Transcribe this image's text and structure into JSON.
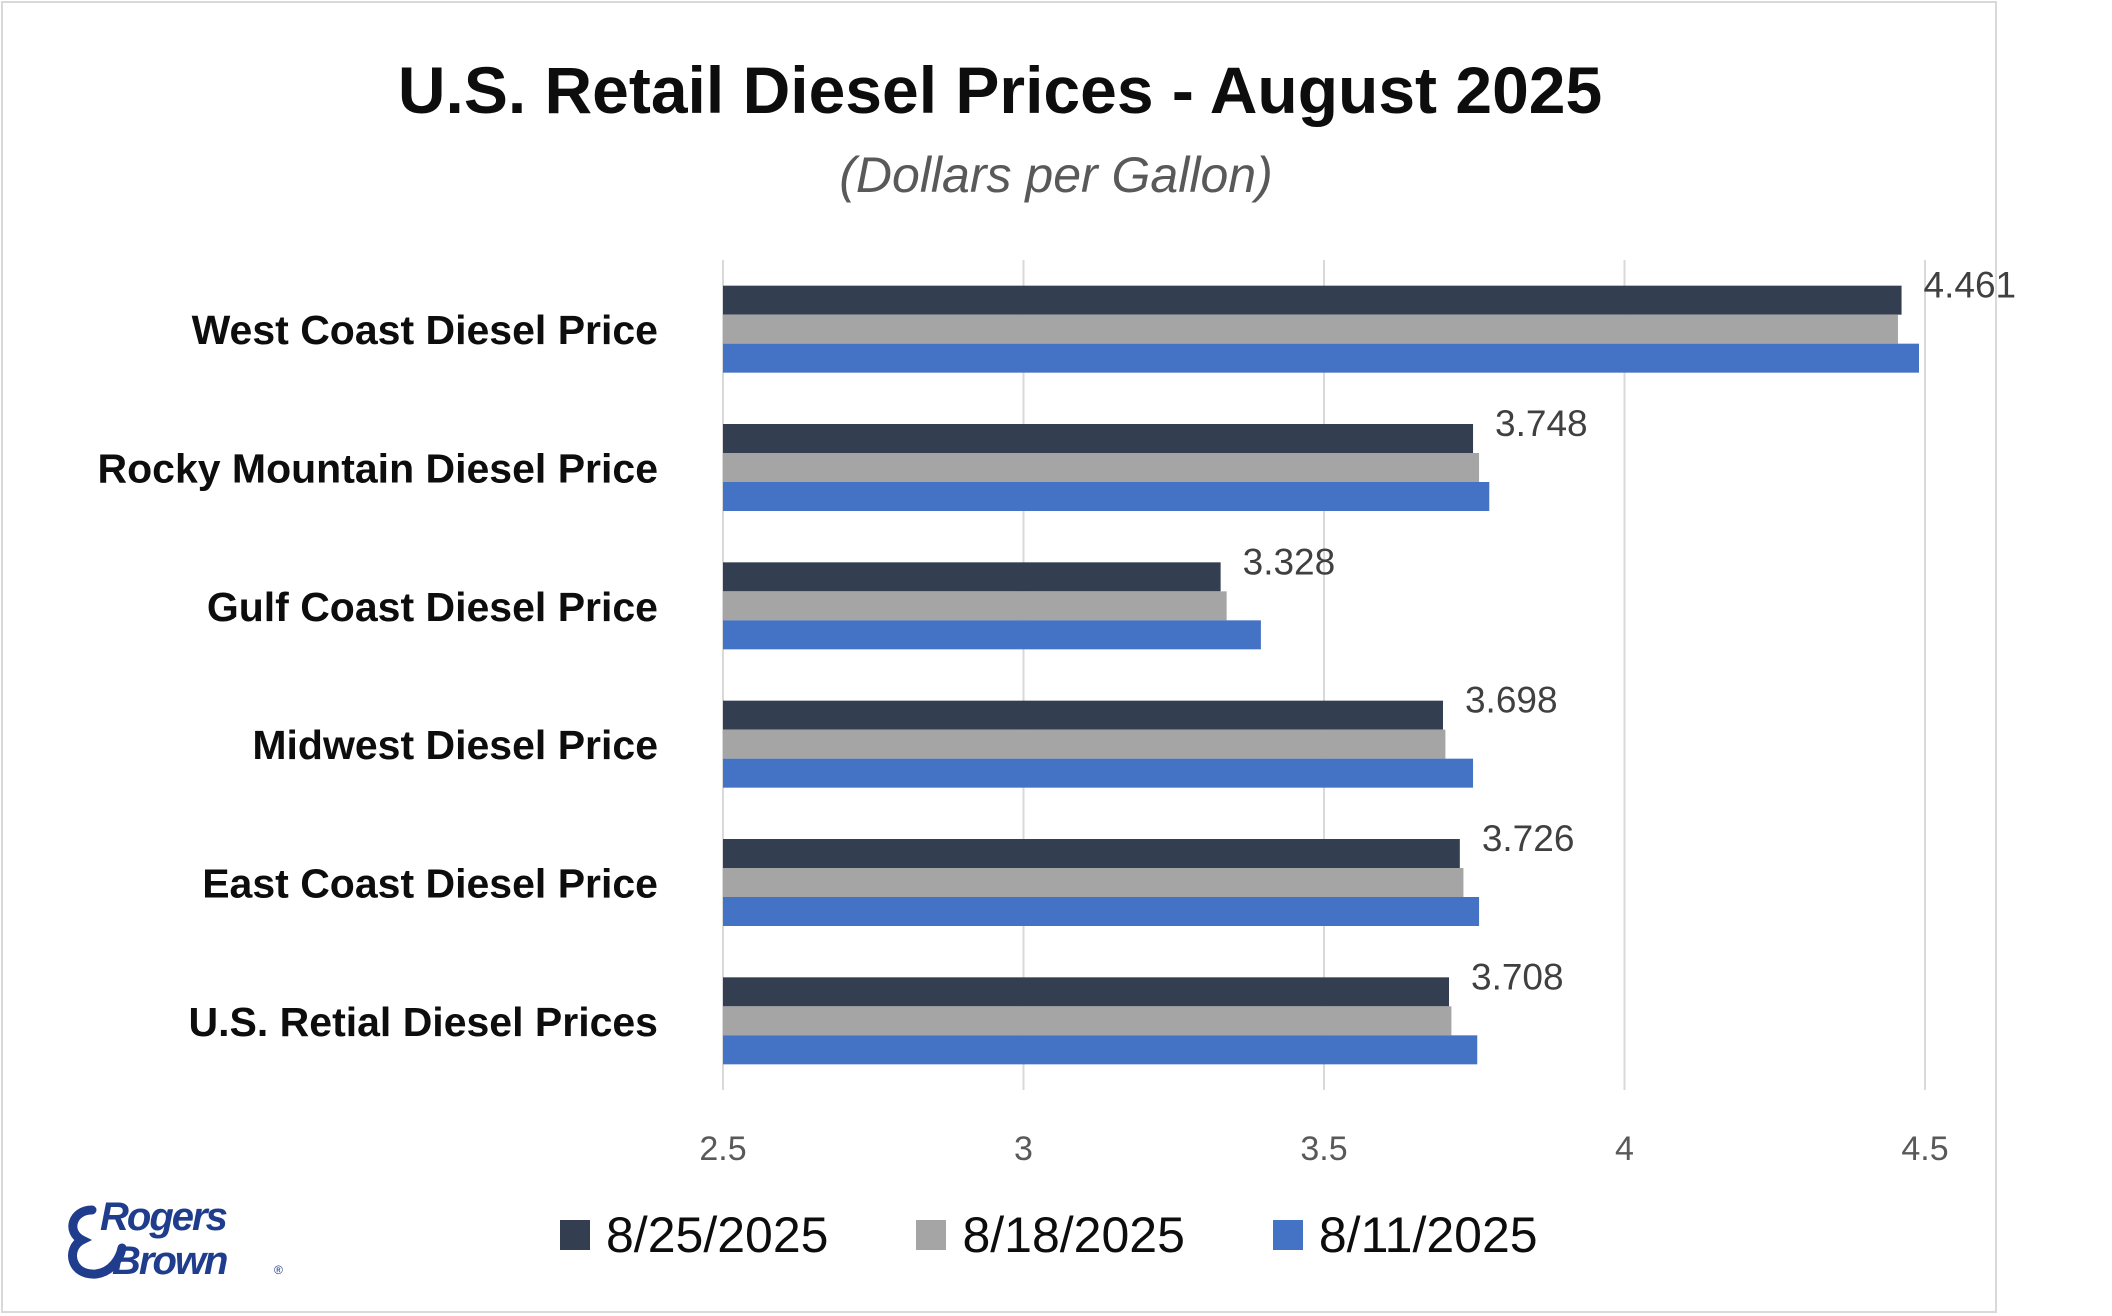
{
  "chart_data": {
    "type": "bar",
    "orientation": "horizontal",
    "title": "U.S. Retail Diesel Prices - August 2025",
    "subtitle": "(Dollars per Gallon)",
    "categories": [
      "West Coast Diesel Price",
      "Rocky Mountain Diesel Price",
      "Gulf Coast Diesel Price",
      "Midwest Diesel Price",
      "East Coast Diesel Price",
      "U.S. Retial Diesel Prices"
    ],
    "series": [
      {
        "name": "8/25/2025",
        "color": "#333f50",
        "values": [
          4.461,
          3.748,
          3.328,
          3.698,
          3.726,
          3.708
        ]
      },
      {
        "name": "8/18/2025",
        "color": "#a5a5a5",
        "values": [
          4.455,
          3.758,
          3.338,
          3.702,
          3.732,
          3.712
        ]
      },
      {
        "name": "8/11/2025",
        "color": "#4472c4",
        "values": [
          4.49,
          3.775,
          3.395,
          3.748,
          3.758,
          3.755
        ]
      }
    ],
    "data_labels": [
      "4.461",
      "3.748",
      "3.328",
      "3.698",
      "3.726",
      "3.708"
    ],
    "x_ticks": [
      "2.5",
      "3",
      "3.5",
      "4",
      "4.5"
    ],
    "xlim": [
      2.5,
      4.5
    ],
    "grid": true,
    "legend_position": "bottom"
  },
  "logo": {
    "line1": "Rogers",
    "line2": "Brown",
    "mark": "®",
    "color": "#1f3d8c"
  }
}
